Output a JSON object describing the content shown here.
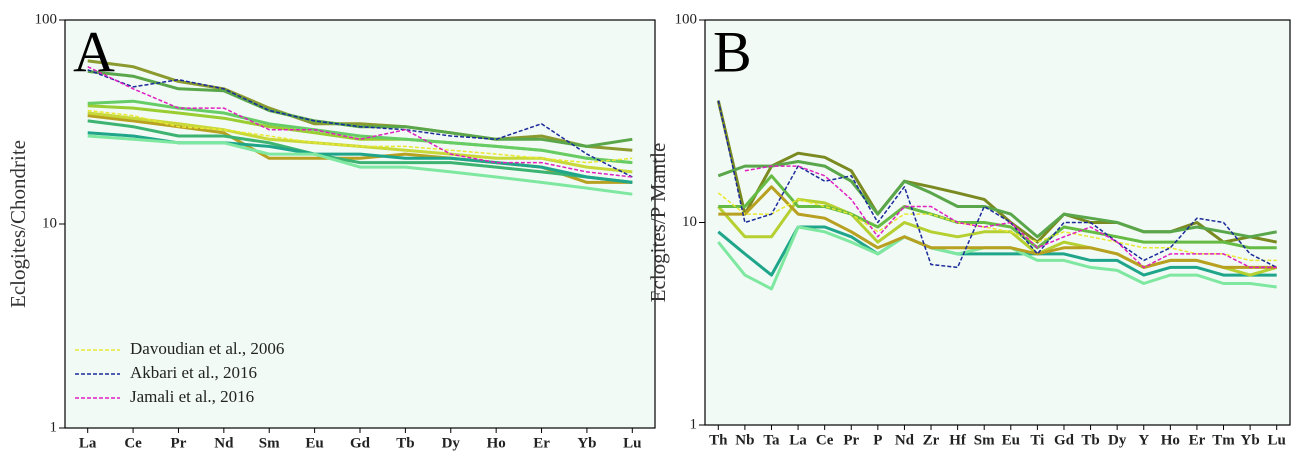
{
  "chart_data": [
    {
      "type": "line",
      "title": "A",
      "y_label": "Eclogites/Chondrite",
      "yscale": "log",
      "ylim": [
        1,
        100
      ],
      "yticks": [
        1,
        10,
        100
      ],
      "legend": "lower left",
      "categories": [
        "La",
        "Ce",
        "Pr",
        "Nd",
        "Sm",
        "Eu",
        "Gd",
        "Tb",
        "Dy",
        "Ho",
        "Er",
        "Yb",
        "Lu"
      ],
      "series": [
        {
          "color": "#8b9a2e",
          "values": [
            63,
            59,
            50,
            46,
            37,
            31,
            31,
            30,
            28,
            26,
            27,
            24,
            23
          ]
        },
        {
          "color": "#5aa64a",
          "values": [
            56,
            53,
            46,
            45,
            36,
            32,
            30,
            30,
            28,
            26,
            26,
            24,
            26
          ]
        },
        {
          "color": "#9acd32",
          "values": [
            38,
            37,
            35,
            33,
            30,
            28,
            26,
            26,
            25,
            24,
            23,
            21,
            20
          ]
        },
        {
          "color": "#66cc66",
          "values": [
            39,
            40,
            37,
            35,
            31,
            29,
            27,
            26,
            25,
            24,
            23,
            21,
            20
          ]
        },
        {
          "color": "#b8a020",
          "values": [
            34,
            32,
            30,
            28,
            21,
            21,
            21,
            22,
            21,
            20,
            19,
            16,
            16
          ]
        },
        {
          "color": "#3cb371",
          "values": [
            32,
            30,
            27,
            27,
            25,
            22,
            20,
            20,
            20,
            19,
            18,
            17,
            16
          ]
        },
        {
          "color": "#1fa58a",
          "values": [
            28,
            27,
            25,
            25,
            24,
            22,
            22,
            21,
            21,
            20,
            19,
            17,
            16
          ]
        },
        {
          "color": "#7fe8a0",
          "values": [
            27,
            26,
            25,
            25,
            22,
            22,
            19,
            19,
            18,
            17,
            16,
            15,
            14
          ]
        },
        {
          "color": "#c8d838",
          "values": [
            35,
            33,
            31,
            29,
            26,
            25,
            24,
            23,
            22,
            21,
            21,
            19,
            18
          ]
        },
        {
          "name": "Davoudian et al., 2006",
          "color": "#e8e830",
          "style": "dashed",
          "values": [
            36,
            34,
            30,
            29,
            27,
            25,
            24,
            24,
            23,
            22,
            21,
            20,
            21
          ]
        },
        {
          "name": "Akbari et al., 2016",
          "color": "#1a2a9a",
          "style": "dashed",
          "values": [
            57,
            47,
            51,
            46,
            36,
            32,
            30,
            29,
            27,
            26,
            31,
            22,
            17
          ]
        },
        {
          "name": "Jamali et al., 2016",
          "color": "#e020c0",
          "style": "dashed",
          "values": [
            59,
            46,
            37,
            37,
            29,
            29,
            26,
            29,
            22,
            20,
            20,
            18,
            17
          ]
        }
      ]
    },
    {
      "type": "line",
      "title": "B",
      "y_label": "Eclogites/P Mantle",
      "yscale": "log",
      "ylim": [
        1,
        100
      ],
      "yticks": [
        1,
        10,
        100
      ],
      "categories": [
        "Th",
        "Nb",
        "Ta",
        "La",
        "Ce",
        "Pr",
        "P",
        "Nd",
        "Zr",
        "Hf",
        "Sm",
        "Eu",
        "Ti",
        "Gd",
        "Tb",
        "Dy",
        "Y",
        "Ho",
        "Er",
        "Tm",
        "Yb",
        "Lu"
      ],
      "series": [
        {
          "color": "#7a8a20",
          "values": [
            40,
            11,
            19,
            22,
            21,
            18,
            11,
            16,
            15,
            14,
            13,
            10,
            8,
            11,
            10,
            10,
            9,
            9,
            10,
            8,
            8.5,
            8
          ]
        },
        {
          "color": "#5aa64a",
          "values": [
            17,
            19,
            19,
            20,
            19,
            16,
            11,
            16,
            14,
            12,
            12,
            11,
            8.5,
            11,
            10.5,
            10,
            9,
            9,
            9.5,
            9,
            8.5,
            9
          ]
        },
        {
          "color": "#1fa58a",
          "values": [
            9,
            7,
            5.5,
            9.5,
            9.5,
            8.5,
            7,
            8.5,
            7.5,
            7,
            7,
            7,
            7,
            7,
            6.5,
            6.5,
            5.5,
            6,
            6,
            5.5,
            5.5,
            5.5
          ]
        },
        {
          "color": "#7fe8a0",
          "values": [
            8,
            5.5,
            4.7,
            9.5,
            9,
            8,
            7,
            8.5,
            7.5,
            7,
            7.5,
            7.5,
            6.5,
            6.5,
            6,
            5.8,
            5,
            5.5,
            5.5,
            5,
            5,
            4.8
          ]
        },
        {
          "color": "#b5d030",
          "values": [
            12,
            8.5,
            8.5,
            13,
            12.5,
            11,
            8,
            10,
            9,
            8.5,
            9,
            9,
            7,
            8,
            7.5,
            7,
            6,
            6.5,
            6.5,
            6,
            5.5,
            6
          ]
        },
        {
          "color": "#b8a020",
          "values": [
            11,
            11,
            15,
            11,
            10.5,
            9,
            7.5,
            8.5,
            7.5,
            7.5,
            7.5,
            7.5,
            7,
            7.5,
            7.5,
            7,
            6,
            6.5,
            6.5,
            6,
            6,
            6
          ]
        },
        {
          "color": "#66bb44",
          "values": [
            12,
            12,
            17,
            12,
            12,
            11,
            9.5,
            12,
            11,
            10,
            10,
            9.5,
            7.5,
            9.5,
            9,
            8.5,
            8,
            8,
            8,
            8,
            7.5,
            7.5
          ]
        },
        {
          "color": "#e8e830",
          "style": "dashed",
          "values": [
            14,
            11,
            11,
            13,
            12,
            11,
            9,
            11,
            11,
            10,
            9.5,
            9,
            8,
            9,
            8.5,
            8,
            7.5,
            7.5,
            7,
            7,
            6.5,
            6.5
          ]
        },
        {
          "color": "#1a2a9a",
          "style": "dashed",
          "values": [
            40,
            10,
            11,
            19,
            16,
            17,
            10,
            15,
            6.2,
            6,
            12,
            10,
            7,
            10,
            10,
            8,
            6.5,
            7.5,
            10.5,
            10,
            7,
            6
          ]
        },
        {
          "color": "#e020c0",
          "style": "dashed",
          "values": [
            null,
            18,
            19,
            19,
            17,
            13,
            8.5,
            12,
            12,
            10,
            9.5,
            10,
            7.5,
            8.5,
            9.5,
            8,
            6,
            7,
            7,
            7,
            6,
            6
          ]
        }
      ]
    }
  ]
}
